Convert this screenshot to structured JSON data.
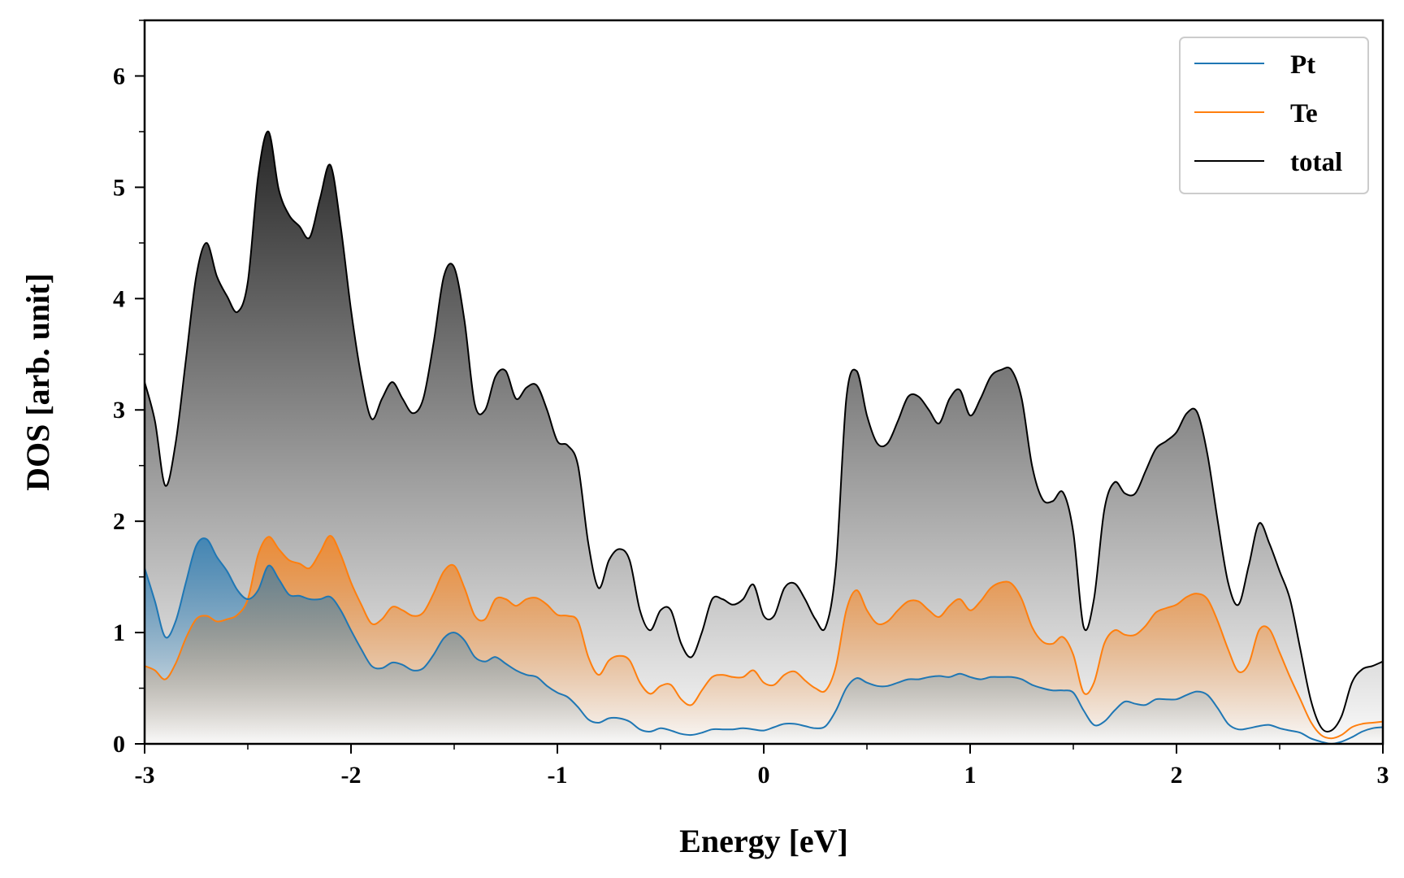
{
  "chart_data": {
    "type": "area",
    "title": "",
    "xlabel": "Energy [eV]",
    "ylabel": "DOS [arb. unit]",
    "xlim": [
      -3,
      3
    ],
    "ylim": [
      0,
      6.5
    ],
    "x_ticks": [
      "-3",
      "-2",
      "-1",
      "0",
      "1",
      "2",
      "3"
    ],
    "y_ticks": [
      "0",
      "1",
      "2",
      "3",
      "4",
      "5",
      "6"
    ],
    "grid": false,
    "legend_position": "top-right",
    "series": [
      {
        "name": "Pt",
        "color": "#1f77b4",
        "x": [
          -3.0,
          -2.95,
          -2.9,
          -2.85,
          -2.8,
          -2.75,
          -2.7,
          -2.65,
          -2.6,
          -2.55,
          -2.5,
          -2.45,
          -2.4,
          -2.35,
          -2.3,
          -2.25,
          -2.2,
          -2.15,
          -2.1,
          -2.05,
          -2.0,
          -1.95,
          -1.9,
          -1.85,
          -1.8,
          -1.75,
          -1.7,
          -1.65,
          -1.6,
          -1.55,
          -1.5,
          -1.45,
          -1.4,
          -1.35,
          -1.3,
          -1.25,
          -1.2,
          -1.15,
          -1.1,
          -1.05,
          -1.0,
          -0.95,
          -0.9,
          -0.85,
          -0.8,
          -0.75,
          -0.7,
          -0.65,
          -0.6,
          -0.55,
          -0.5,
          -0.45,
          -0.4,
          -0.35,
          -0.3,
          -0.25,
          -0.2,
          -0.15,
          -0.1,
          -0.05,
          0.0,
          0.05,
          0.1,
          0.15,
          0.2,
          0.25,
          0.3,
          0.35,
          0.4,
          0.45,
          0.5,
          0.55,
          0.6,
          0.65,
          0.7,
          0.75,
          0.8,
          0.85,
          0.9,
          0.95,
          1.0,
          1.05,
          1.1,
          1.15,
          1.2,
          1.25,
          1.3,
          1.35,
          1.4,
          1.45,
          1.5,
          1.55,
          1.6,
          1.65,
          1.7,
          1.75,
          1.8,
          1.85,
          1.9,
          1.95,
          2.0,
          2.05,
          2.1,
          2.15,
          2.2,
          2.25,
          2.3,
          2.35,
          2.4,
          2.45,
          2.5,
          2.55,
          2.6,
          2.65,
          2.7,
          2.75,
          2.8,
          2.85,
          2.9,
          2.95,
          3.0
        ],
        "values": [
          1.58,
          1.28,
          0.96,
          1.1,
          1.45,
          1.78,
          1.84,
          1.68,
          1.55,
          1.38,
          1.3,
          1.38,
          1.6,
          1.48,
          1.34,
          1.33,
          1.3,
          1.3,
          1.32,
          1.2,
          1.02,
          0.85,
          0.7,
          0.68,
          0.73,
          0.71,
          0.66,
          0.68,
          0.8,
          0.95,
          1.0,
          0.93,
          0.78,
          0.74,
          0.78,
          0.72,
          0.66,
          0.62,
          0.6,
          0.52,
          0.46,
          0.42,
          0.33,
          0.22,
          0.19,
          0.23,
          0.23,
          0.2,
          0.13,
          0.11,
          0.14,
          0.12,
          0.09,
          0.08,
          0.1,
          0.13,
          0.13,
          0.13,
          0.14,
          0.13,
          0.12,
          0.15,
          0.18,
          0.18,
          0.16,
          0.14,
          0.16,
          0.3,
          0.5,
          0.59,
          0.55,
          0.52,
          0.52,
          0.55,
          0.58,
          0.58,
          0.6,
          0.61,
          0.6,
          0.63,
          0.6,
          0.58,
          0.6,
          0.6,
          0.6,
          0.58,
          0.53,
          0.5,
          0.48,
          0.48,
          0.46,
          0.3,
          0.17,
          0.2,
          0.3,
          0.38,
          0.36,
          0.35,
          0.4,
          0.4,
          0.4,
          0.44,
          0.47,
          0.44,
          0.32,
          0.18,
          0.13,
          0.14,
          0.16,
          0.17,
          0.14,
          0.12,
          0.1,
          0.05,
          0.02,
          0.0,
          0.02,
          0.06,
          0.11,
          0.14,
          0.15
        ]
      },
      {
        "name": "Te",
        "color": "#ff7f0e",
        "x": [
          -3.0,
          -2.95,
          -2.9,
          -2.85,
          -2.8,
          -2.75,
          -2.7,
          -2.65,
          -2.6,
          -2.55,
          -2.5,
          -2.45,
          -2.4,
          -2.35,
          -2.3,
          -2.25,
          -2.2,
          -2.15,
          -2.1,
          -2.05,
          -2.0,
          -1.95,
          -1.9,
          -1.85,
          -1.8,
          -1.75,
          -1.7,
          -1.65,
          -1.6,
          -1.55,
          -1.5,
          -1.45,
          -1.4,
          -1.35,
          -1.3,
          -1.25,
          -1.2,
          -1.15,
          -1.1,
          -1.05,
          -1.0,
          -0.95,
          -0.9,
          -0.85,
          -0.8,
          -0.75,
          -0.7,
          -0.65,
          -0.6,
          -0.55,
          -0.5,
          -0.45,
          -0.4,
          -0.35,
          -0.3,
          -0.25,
          -0.2,
          -0.15,
          -0.1,
          -0.05,
          0.0,
          0.05,
          0.1,
          0.15,
          0.2,
          0.25,
          0.3,
          0.35,
          0.4,
          0.45,
          0.5,
          0.55,
          0.6,
          0.65,
          0.7,
          0.75,
          0.8,
          0.85,
          0.9,
          0.95,
          1.0,
          1.05,
          1.1,
          1.15,
          1.2,
          1.25,
          1.3,
          1.35,
          1.4,
          1.45,
          1.5,
          1.55,
          1.6,
          1.65,
          1.7,
          1.75,
          1.8,
          1.85,
          1.9,
          1.95,
          2.0,
          2.05,
          2.1,
          2.15,
          2.2,
          2.25,
          2.3,
          2.35,
          2.4,
          2.45,
          2.5,
          2.55,
          2.6,
          2.65,
          2.7,
          2.75,
          2.8,
          2.85,
          2.9,
          2.95,
          3.0
        ],
        "values": [
          0.7,
          0.66,
          0.58,
          0.72,
          0.95,
          1.12,
          1.15,
          1.1,
          1.12,
          1.16,
          1.3,
          1.7,
          1.86,
          1.75,
          1.65,
          1.62,
          1.58,
          1.72,
          1.87,
          1.7,
          1.45,
          1.25,
          1.08,
          1.12,
          1.23,
          1.2,
          1.15,
          1.18,
          1.35,
          1.55,
          1.6,
          1.4,
          1.15,
          1.12,
          1.3,
          1.3,
          1.24,
          1.3,
          1.31,
          1.25,
          1.16,
          1.15,
          1.1,
          0.78,
          0.62,
          0.75,
          0.79,
          0.75,
          0.55,
          0.45,
          0.52,
          0.53,
          0.4,
          0.35,
          0.48,
          0.6,
          0.62,
          0.6,
          0.6,
          0.66,
          0.55,
          0.53,
          0.62,
          0.65,
          0.57,
          0.5,
          0.48,
          0.7,
          1.2,
          1.38,
          1.2,
          1.08,
          1.1,
          1.2,
          1.28,
          1.28,
          1.2,
          1.14,
          1.24,
          1.3,
          1.2,
          1.28,
          1.4,
          1.45,
          1.44,
          1.3,
          1.05,
          0.92,
          0.9,
          0.96,
          0.8,
          0.46,
          0.55,
          0.9,
          1.02,
          0.98,
          0.98,
          1.06,
          1.18,
          1.22,
          1.25,
          1.32,
          1.35,
          1.3,
          1.1,
          0.85,
          0.65,
          0.72,
          1.02,
          1.03,
          0.82,
          0.6,
          0.4,
          0.2,
          0.08,
          0.05,
          0.08,
          0.15,
          0.18,
          0.19,
          0.2
        ]
      },
      {
        "name": "total",
        "color": "#000000",
        "x": [
          -3.0,
          -2.95,
          -2.9,
          -2.85,
          -2.8,
          -2.75,
          -2.7,
          -2.65,
          -2.6,
          -2.55,
          -2.5,
          -2.45,
          -2.4,
          -2.35,
          -2.3,
          -2.25,
          -2.2,
          -2.15,
          -2.1,
          -2.05,
          -2.0,
          -1.95,
          -1.9,
          -1.85,
          -1.8,
          -1.75,
          -1.7,
          -1.65,
          -1.6,
          -1.55,
          -1.5,
          -1.45,
          -1.4,
          -1.35,
          -1.3,
          -1.25,
          -1.2,
          -1.15,
          -1.1,
          -1.05,
          -1.0,
          -0.95,
          -0.9,
          -0.85,
          -0.8,
          -0.75,
          -0.7,
          -0.65,
          -0.6,
          -0.55,
          -0.5,
          -0.45,
          -0.4,
          -0.35,
          -0.3,
          -0.25,
          -0.2,
          -0.15,
          -0.1,
          -0.05,
          0.0,
          0.05,
          0.1,
          0.15,
          0.2,
          0.25,
          0.3,
          0.35,
          0.4,
          0.45,
          0.5,
          0.55,
          0.6,
          0.65,
          0.7,
          0.75,
          0.8,
          0.85,
          0.9,
          0.95,
          1.0,
          1.05,
          1.1,
          1.15,
          1.2,
          1.25,
          1.3,
          1.35,
          1.4,
          1.45,
          1.5,
          1.55,
          1.6,
          1.65,
          1.7,
          1.75,
          1.8,
          1.85,
          1.9,
          1.95,
          2.0,
          2.05,
          2.1,
          2.15,
          2.2,
          2.25,
          2.3,
          2.35,
          2.4,
          2.45,
          2.5,
          2.55,
          2.6,
          2.65,
          2.7,
          2.75,
          2.8,
          2.85,
          2.9,
          2.95,
          3.0
        ],
        "values": [
          3.25,
          2.9,
          2.32,
          2.7,
          3.45,
          4.2,
          4.5,
          4.2,
          4.02,
          3.88,
          4.15,
          5.1,
          5.5,
          4.98,
          4.75,
          4.65,
          4.55,
          4.9,
          5.2,
          4.65,
          3.9,
          3.3,
          2.92,
          3.1,
          3.25,
          3.1,
          2.97,
          3.1,
          3.6,
          4.2,
          4.28,
          3.8,
          3.05,
          3.0,
          3.3,
          3.35,
          3.1,
          3.2,
          3.22,
          3.0,
          2.72,
          2.68,
          2.5,
          1.8,
          1.4,
          1.65,
          1.75,
          1.65,
          1.2,
          1.02,
          1.2,
          1.2,
          0.9,
          0.78,
          1.0,
          1.3,
          1.3,
          1.25,
          1.3,
          1.43,
          1.15,
          1.15,
          1.4,
          1.44,
          1.3,
          1.12,
          1.05,
          1.6,
          3.1,
          3.35,
          2.95,
          2.7,
          2.7,
          2.9,
          3.12,
          3.12,
          3.0,
          2.88,
          3.1,
          3.18,
          2.95,
          3.1,
          3.3,
          3.36,
          3.36,
          3.1,
          2.5,
          2.2,
          2.18,
          2.26,
          1.9,
          1.05,
          1.3,
          2.1,
          2.35,
          2.25,
          2.25,
          2.45,
          2.65,
          2.72,
          2.8,
          2.97,
          2.98,
          2.6,
          2.0,
          1.45,
          1.25,
          1.6,
          1.98,
          1.8,
          1.55,
          1.3,
          0.85,
          0.4,
          0.15,
          0.12,
          0.25,
          0.55,
          0.67,
          0.7,
          0.74
        ]
      }
    ]
  }
}
